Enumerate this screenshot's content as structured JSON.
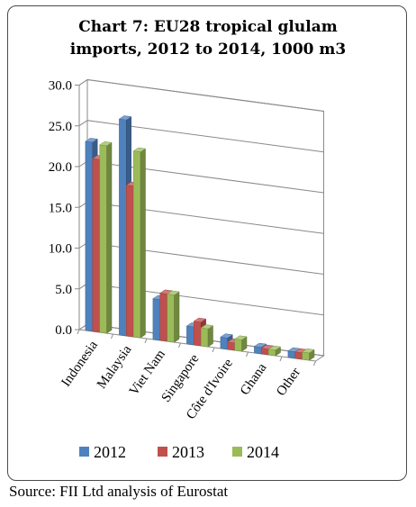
{
  "chart_data": {
    "type": "bar",
    "title": "Chart 7: EU28 tropical glulam imports, 2012 to 2014, 1000 m3",
    "title_lines": [
      "Chart 7: EU28 tropical glulam",
      "imports, 2012 to 2014, 1000 m3"
    ],
    "categories": [
      "Indonesia",
      "Malaysia",
      "Viet Nam",
      "Singapore",
      "Côte d'Ivoire",
      "Ghana",
      "Other"
    ],
    "series": [
      {
        "name": "2012",
        "color": "#4f81bd",
        "values": [
          23.2,
          26.5,
          5.0,
          2.2,
          1.4,
          0.8,
          0.8
        ]
      },
      {
        "name": "2013",
        "color": "#c0504d",
        "values": [
          21.2,
          18.5,
          5.8,
          2.9,
          0.9,
          0.7,
          0.8
        ]
      },
      {
        "name": "2014",
        "color": "#9bbb59",
        "values": [
          23.0,
          22.8,
          5.8,
          2.2,
          1.4,
          0.7,
          0.9
        ]
      }
    ],
    "ylim": [
      0,
      30
    ],
    "yticks": [
      "0.0",
      "5.0",
      "10.0",
      "15.0",
      "20.0",
      "25.0",
      "30.0"
    ],
    "three_d": true,
    "grid": true,
    "legend_position": "bottom"
  },
  "source": "Source: FII Ltd analysis of Eurostat"
}
